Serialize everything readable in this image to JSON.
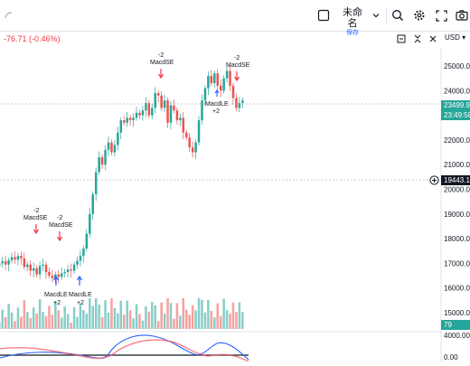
{
  "toolbar": {
    "layout_name": "未命名",
    "layout_status": "保存",
    "icons": [
      "square-icon",
      "chevron-down-icon",
      "search-icon",
      "gear-icon",
      "fullscreen-icon",
      "camera-icon"
    ]
  },
  "legend": {
    "change": "-76.71 (-0.46%)"
  },
  "controls": {
    "currency": "USD"
  },
  "price_axis": {
    "ticks": [
      "25000.00",
      "24000.00",
      "23000.00",
      "22000.00",
      "21000.00",
      "20000.00",
      "19000.00",
      "18000.00",
      "17000.00",
      "16000.00",
      "15000.00"
    ],
    "last_price": "23499.97",
    "countdown": "23:49:58",
    "crosshair_price": "19443.14",
    "volume_value": "79",
    "osc_tick": "4000.00",
    "osc_tick2": "0.00"
  },
  "annotations": [
    {
      "qty": "-2",
      "name": "MacdSE"
    },
    {
      "qty": "-2",
      "name": "MacdSE"
    },
    {
      "qty": "-2",
      "name": "MacdSE"
    },
    {
      "qty": "-2",
      "name": "MacdSE"
    },
    {
      "name": "MacdLE",
      "qty": "+2"
    },
    {
      "name": "MacdLE",
      "qty": "+2"
    },
    {
      "name": "MacdLE",
      "qty": "+2"
    }
  ],
  "colors": {
    "up": "#26a69a",
    "down": "#ef5350",
    "macd": "#2962ff",
    "signal": "#f7525f"
  }
}
